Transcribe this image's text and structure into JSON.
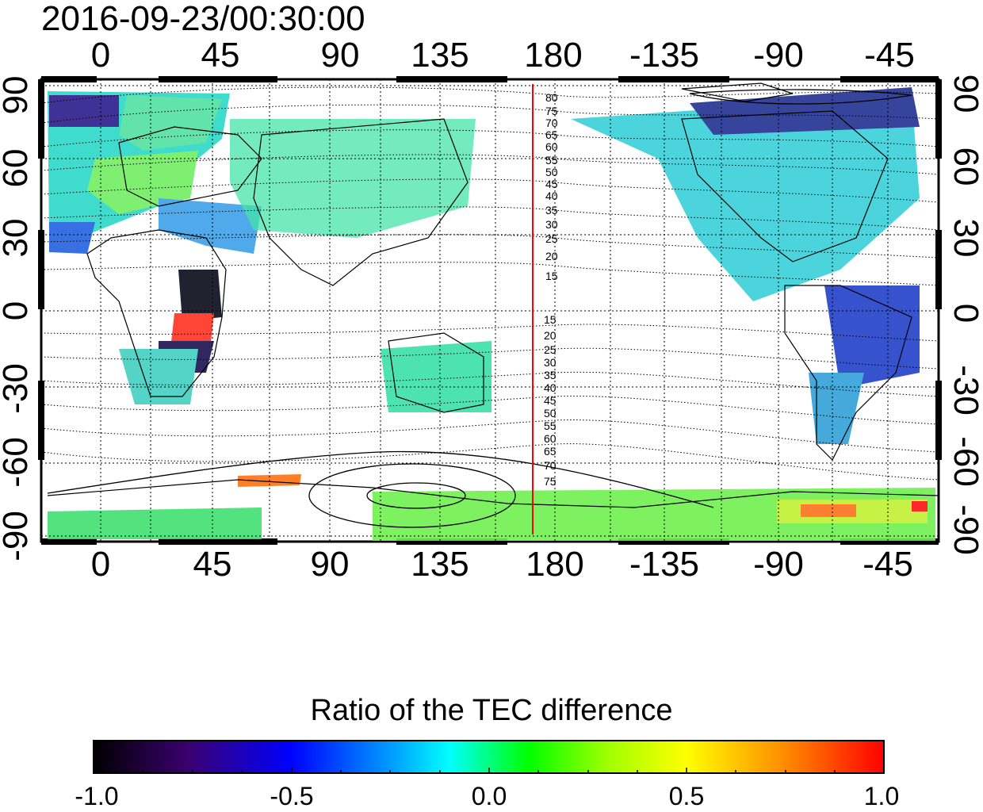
{
  "title": "2016-09-23/00:30:00",
  "top_lon_labels": [
    "0",
    "45",
    "90",
    "135",
    "180",
    "-135",
    "-90",
    "-45"
  ],
  "bottom_lon_labels": [
    "0",
    "45",
    "90",
    "135",
    "180",
    "-135",
    "-90",
    "-45"
  ],
  "left_lat_labels": [
    "90",
    "60",
    "30",
    "0",
    "-30",
    "-60",
    "-90"
  ],
  "right_lat_labels": [
    "90",
    "60",
    "30",
    "0",
    "-30",
    "-60",
    "-90"
  ],
  "colorbar": {
    "title": "Ratio of the TEC difference",
    "tick_labels": [
      "-1.0",
      "-0.5",
      "0.0",
      "0.5",
      "1.0"
    ],
    "range": [
      -1.0,
      1.0
    ],
    "colors": [
      "#000000",
      "#3a0070",
      "#0000ff",
      "#00a0ff",
      "#00ffff",
      "#00ff80",
      "#00ff00",
      "#a0ff00",
      "#ffff00",
      "#ff9000",
      "#ff0000"
    ]
  },
  "terminator": {
    "color": "#ff0000",
    "longitude_deg": 172
  },
  "contour_labels_north": [
    "80",
    "75",
    "70",
    "65",
    "60",
    "55",
    "50",
    "45",
    "40",
    "35",
    "30",
    "25",
    "20",
    "15"
  ],
  "contour_labels_south": [
    "15",
    "20",
    "25",
    "30",
    "35",
    "40",
    "45",
    "50",
    "55",
    "60",
    "65",
    "70",
    "75"
  ]
}
